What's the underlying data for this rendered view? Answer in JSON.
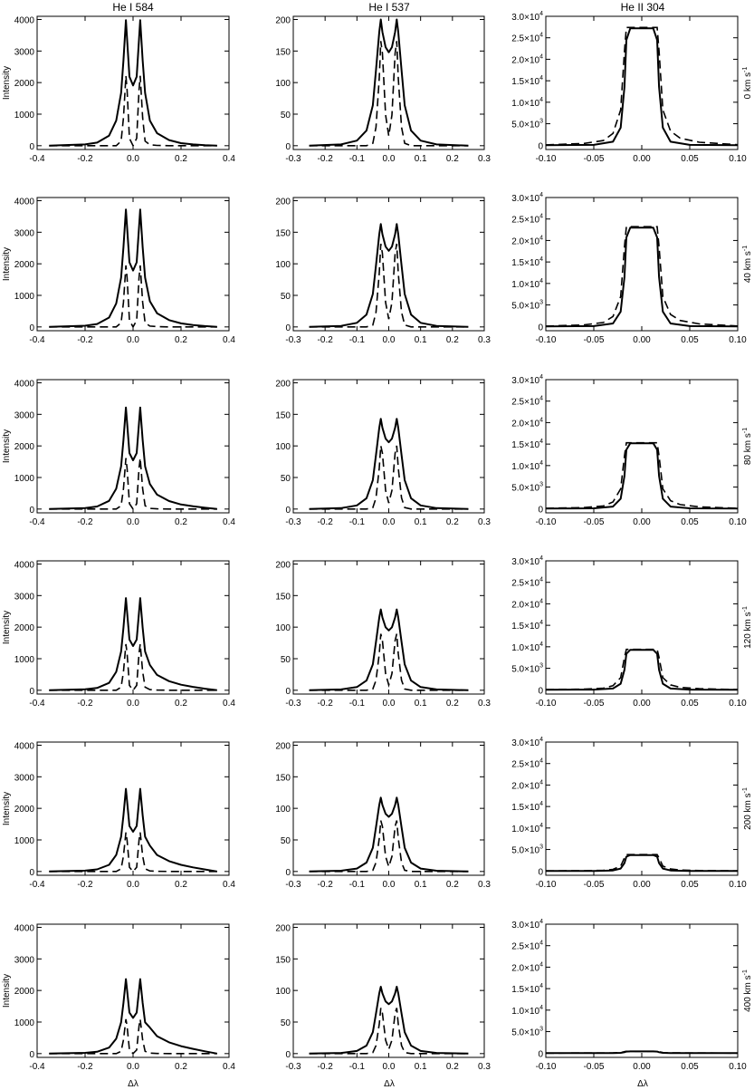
{
  "figure": {
    "column_titles": [
      "He I 584",
      "He I 537",
      "He II 304"
    ],
    "y_axis_title": "Intensity",
    "x_axis_title": "Δλ",
    "row_labels": [
      [
        "0",
        " km s",
        "-1"
      ],
      [
        "40",
        " km s",
        "-1"
      ],
      [
        "80",
        " km s",
        "-1"
      ],
      [
        "120",
        " km s",
        "-1"
      ],
      [
        "200",
        " km s",
        "-1"
      ],
      [
        "400",
        " km s",
        "-1"
      ]
    ]
  },
  "chart_data": [
    {
      "type": "line",
      "title": "He I 584",
      "xlabel": "Δλ",
      "ylabel": "Intensity",
      "xlim": [
        -0.4,
        0.4
      ],
      "ylim": [
        -120,
        4100
      ],
      "xticks": [
        -0.4,
        -0.2,
        0.0,
        0.2,
        0.4
      ],
      "xtick_labels": [
        "-0.4",
        "-0.2",
        "0.0",
        "0.2",
        "0.4"
      ],
      "yticks": [
        0,
        1000,
        2000,
        3000,
        4000
      ],
      "ytick_labels": [
        "0",
        "1000",
        "2000",
        "3000",
        "4000"
      ],
      "profile": {
        "x": [
          -0.35,
          -0.2,
          -0.15,
          -0.1,
          -0.07,
          -0.05,
          -0.04,
          -0.03,
          -0.025,
          -0.015,
          0.0,
          0.015,
          0.025,
          0.03,
          0.04,
          0.05,
          0.07,
          0.1,
          0.15,
          0.2,
          0.25,
          0.3,
          0.35
        ],
        "solid_shape": [
          0,
          0.01,
          0.025,
          0.08,
          0.2,
          0.42,
          0.68,
          1.0,
          0.85,
          0.55,
          0.48,
          0.55,
          0.85,
          1.0,
          0.68,
          0.42,
          0.2,
          0.1,
          0.045,
          0.02,
          0.01,
          0.004,
          0
        ],
        "dashed_shape": [
          0,
          0,
          0,
          0,
          0,
          0.05,
          0.3,
          0.75,
          0.6,
          0.08,
          0,
          0.08,
          0.6,
          0.75,
          0.3,
          0.05,
          0.01,
          0.003,
          0,
          0,
          0,
          0,
          0
        ],
        "solid_tail_extra": [
          0,
          0.02,
          0.05,
          0.08,
          0.12,
          0.16
        ]
      },
      "series": [
        {
          "row_label": "0 km s-1",
          "solid_peak": 3980,
          "dashed_peak": 2950
        },
        {
          "row_label": "40 km s-1",
          "solid_peak": 3720,
          "dashed_peak": 2600
        },
        {
          "row_label": "80 km s-1",
          "solid_peak": 3220,
          "dashed_peak": 2150
        },
        {
          "row_label": "120 km s-1",
          "solid_peak": 2920,
          "dashed_peak": 1950
        },
        {
          "row_label": "200 km s-1",
          "solid_peak": 2620,
          "dashed_peak": 1650
        },
        {
          "row_label": "400 km s-1",
          "solid_peak": 2360,
          "dashed_peak": 1450
        }
      ]
    },
    {
      "type": "line",
      "title": "He I 537",
      "xlabel": "Δλ",
      "ylabel": "",
      "xlim": [
        -0.3,
        0.3
      ],
      "ylim": [
        -6,
        205
      ],
      "xticks": [
        -0.3,
        -0.2,
        -0.1,
        0.0,
        0.1,
        0.2,
        0.3
      ],
      "xtick_labels": [
        "-0.3",
        "-0.2",
        "-0.1",
        "0.0",
        "0.1",
        "0.2",
        "0.3"
      ],
      "yticks": [
        0,
        50,
        100,
        150,
        200
      ],
      "ytick_labels": [
        "0",
        "50",
        "100",
        "150",
        "200"
      ],
      "profile": {
        "x": [
          -0.25,
          -0.15,
          -0.1,
          -0.07,
          -0.05,
          -0.04,
          -0.03,
          -0.025,
          -0.02,
          -0.01,
          0.0,
          0.01,
          0.02,
          0.025,
          0.03,
          0.04,
          0.05,
          0.07,
          0.1,
          0.15,
          0.25
        ],
        "solid_shape": [
          0,
          0.01,
          0.04,
          0.12,
          0.32,
          0.6,
          0.9,
          1.0,
          0.9,
          0.78,
          0.74,
          0.78,
          0.9,
          1.0,
          0.9,
          0.6,
          0.32,
          0.12,
          0.04,
          0.01,
          0
        ],
        "dashed_shape": [
          0,
          0,
          0,
          0,
          0.02,
          0.15,
          0.55,
          0.85,
          0.75,
          0.25,
          0.08,
          0.25,
          0.75,
          0.85,
          0.55,
          0.15,
          0.02,
          0,
          0,
          0,
          0
        ]
      },
      "series": [
        {
          "row_label": "0 km s-1",
          "solid_peak": 200,
          "dashed_peak": 195
        },
        {
          "row_label": "40 km s-1",
          "solid_peak": 163,
          "dashed_peak": 155
        },
        {
          "row_label": "80 km s-1",
          "solid_peak": 143,
          "dashed_peak": 118
        },
        {
          "row_label": "120 km s-1",
          "solid_peak": 128,
          "dashed_peak": 105
        },
        {
          "row_label": "200 km s-1",
          "solid_peak": 117,
          "dashed_peak": 95
        },
        {
          "row_label": "400 km s-1",
          "solid_peak": 106,
          "dashed_peak": 85
        }
      ]
    },
    {
      "type": "line",
      "title": "He II 304",
      "xlabel": "Δλ",
      "ylabel": "",
      "xlim": [
        -0.1,
        0.1
      ],
      "ylim": [
        -1000,
        30000
      ],
      "xticks": [
        -0.1,
        -0.05,
        0.0,
        0.05,
        0.1
      ],
      "xtick_labels": [
        "-0.10",
        "-0.05",
        "0.00",
        "0.05",
        "0.10"
      ],
      "yticks": [
        0,
        5000,
        10000,
        15000,
        20000,
        25000,
        30000
      ],
      "ytick_labels": [
        [
          "0",
          "",
          ""
        ],
        [
          "5.0×10",
          "3",
          ""
        ],
        [
          "1.0×10",
          "4",
          ""
        ],
        [
          "1.5×10",
          "4",
          ""
        ],
        [
          "2.0×10",
          "4",
          ""
        ],
        [
          "2.5×10",
          "4",
          ""
        ],
        [
          "3.0×10",
          "4",
          ""
        ]
      ],
      "profile": {
        "x": [
          -0.1,
          -0.05,
          -0.03,
          -0.022,
          -0.018,
          -0.016,
          -0.012,
          0.0,
          0.012,
          0.016,
          0.018,
          0.022,
          0.03,
          0.05,
          0.1
        ],
        "solid_shape": [
          0,
          0.003,
          0.03,
          0.15,
          0.5,
          0.9,
          1.0,
          1.0,
          1.0,
          0.9,
          0.5,
          0.15,
          0.03,
          0.003,
          0
        ],
        "dashed_x": [
          -0.1,
          -0.06,
          -0.04,
          -0.03,
          -0.022,
          -0.018,
          -0.016,
          0.0,
          0.016,
          0.018,
          0.022,
          0.03,
          0.04,
          0.06,
          0.1
        ],
        "dashed_shape": [
          0.003,
          0.015,
          0.04,
          0.1,
          0.3,
          0.8,
          1.0,
          1.0,
          1.0,
          0.8,
          0.3,
          0.12,
          0.06,
          0.025,
          0.004
        ]
      },
      "series": [
        {
          "row_label": "0 km s-1",
          "solid_peak": 27200,
          "dashed_peak": 27400
        },
        {
          "row_label": "40 km s-1",
          "solid_peak": 23000,
          "dashed_peak": 23200
        },
        {
          "row_label": "80 km s-1",
          "solid_peak": 15200,
          "dashed_peak": 15300
        },
        {
          "row_label": "120 km s-1",
          "solid_peak": 9300,
          "dashed_peak": 9400
        },
        {
          "row_label": "200 km s-1",
          "solid_peak": 3700,
          "dashed_peak": 3800
        },
        {
          "row_label": "400 km s-1",
          "solid_peak": 400,
          "dashed_peak": 420
        }
      ]
    }
  ]
}
